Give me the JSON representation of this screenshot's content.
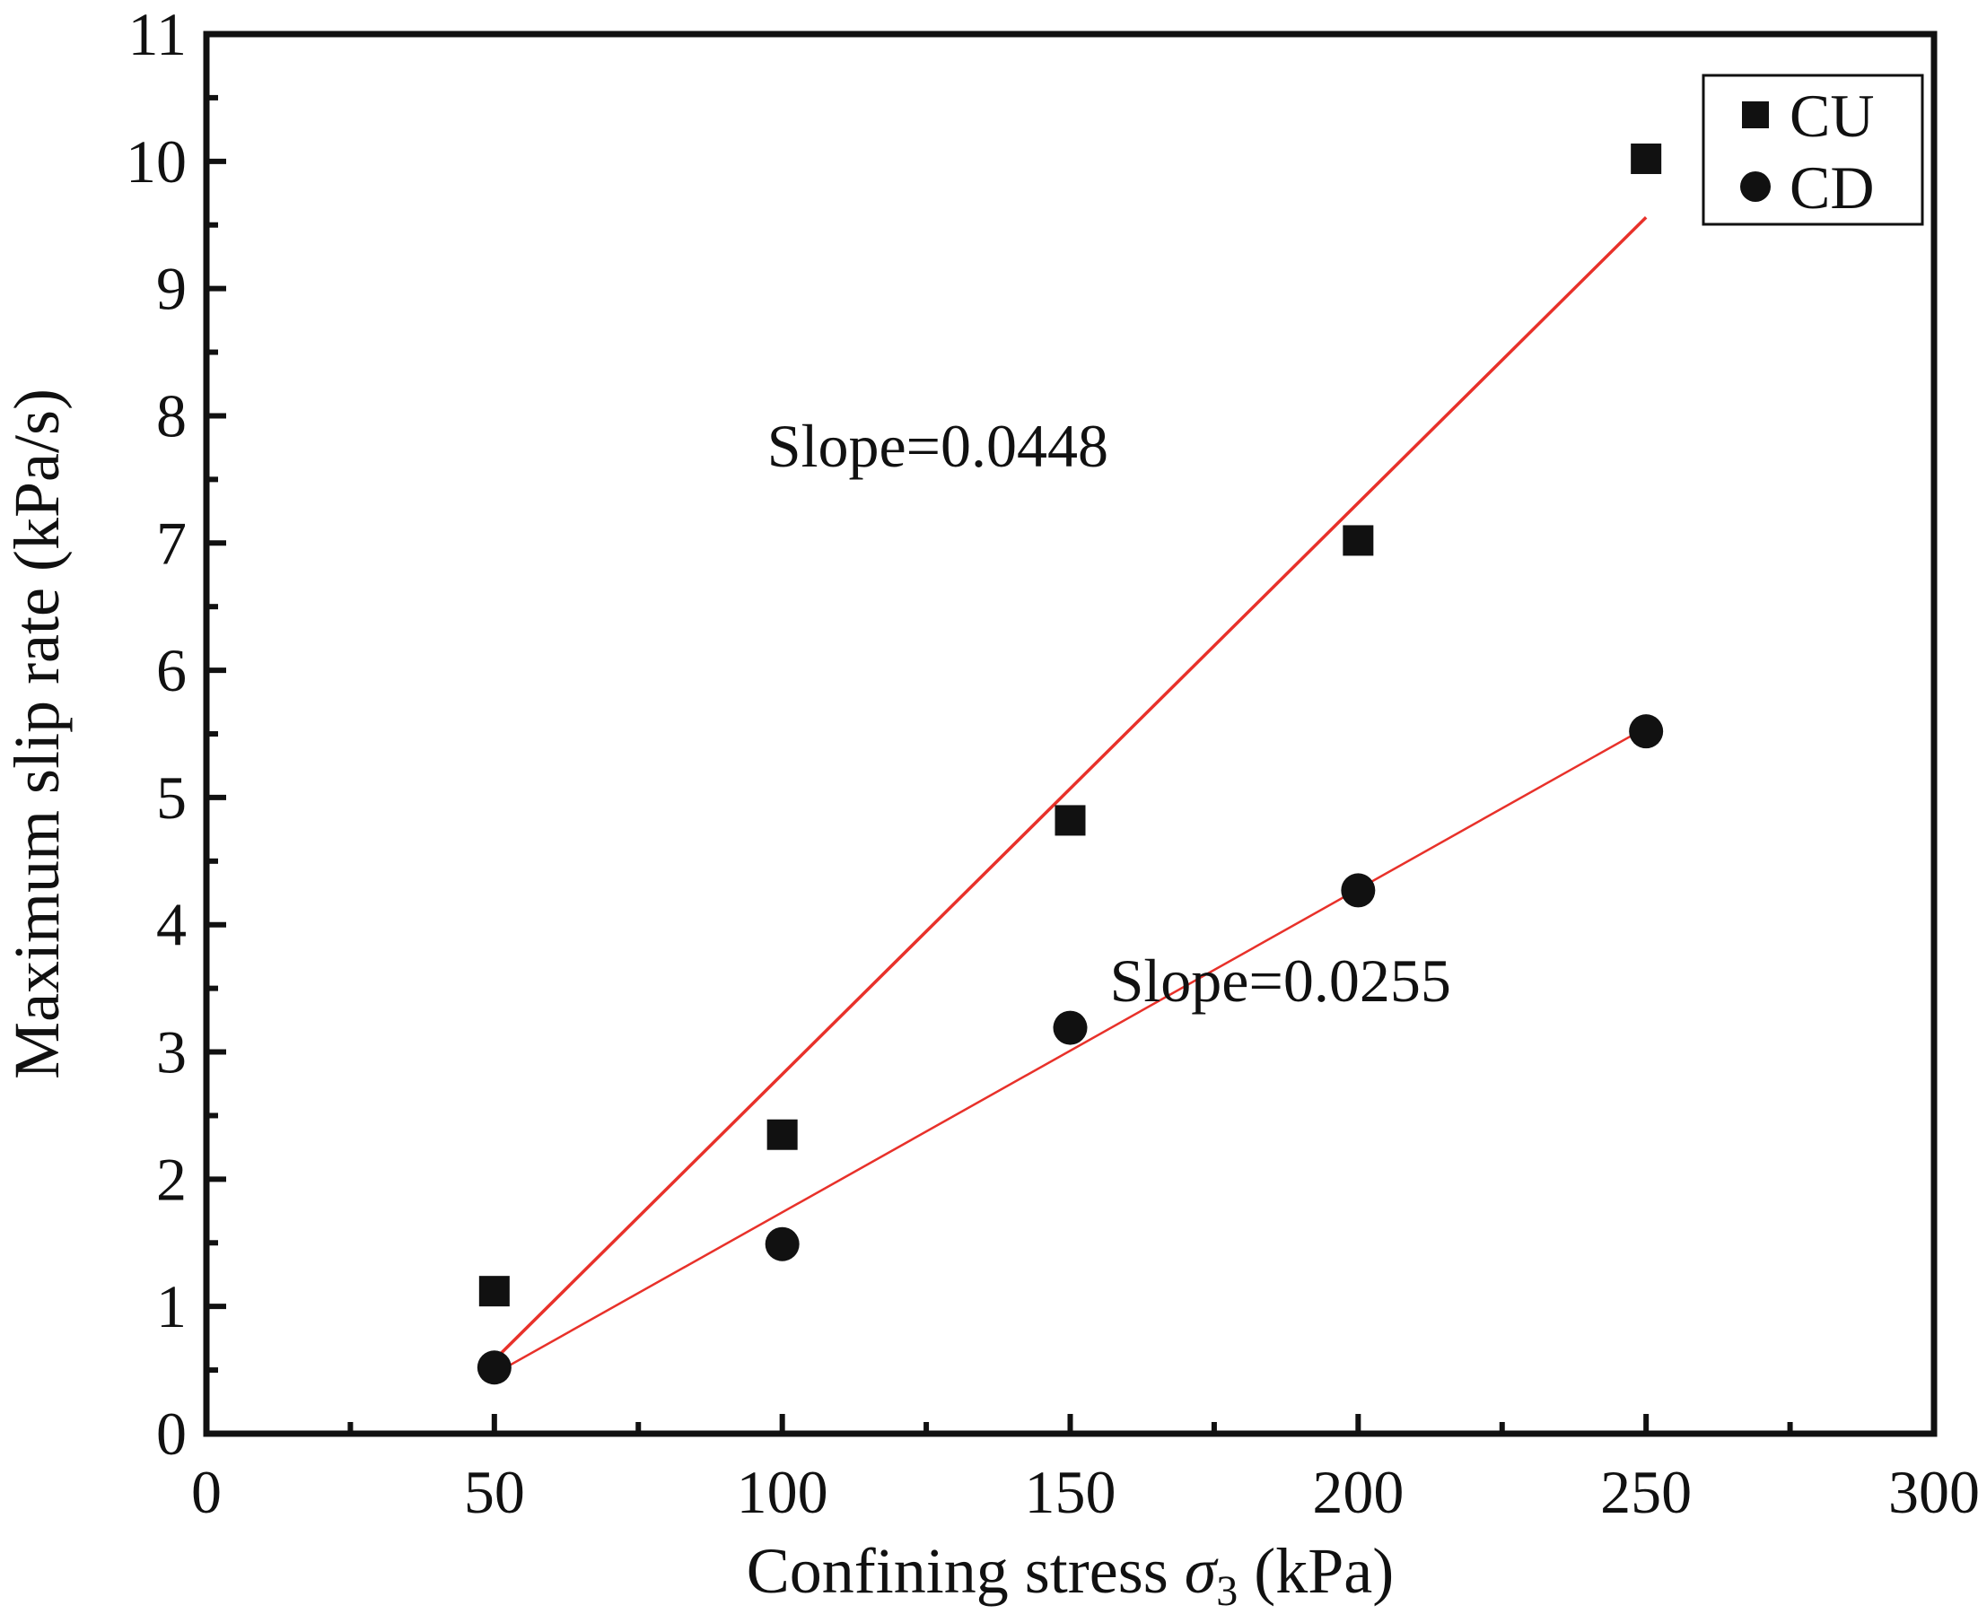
{
  "chart_data": {
    "type": "scatter",
    "title": "",
    "xlabel": {
      "prefix": "Confining stress ",
      "symbol": "σ",
      "subscript": "3",
      "suffix": " (kPa)"
    },
    "ylabel": "Maximum slip rate (kPa/s)",
    "xlim": [
      0,
      300
    ],
    "ylim": [
      0,
      11
    ],
    "xticks": [
      0,
      50,
      100,
      150,
      200,
      250,
      300
    ],
    "xtick_labels": [
      "0",
      "50",
      "100",
      "150",
      "200",
      "250",
      "300"
    ],
    "yticks": [
      0,
      1,
      2,
      3,
      4,
      5,
      6,
      7,
      8,
      9,
      10,
      11
    ],
    "ytick_labels": [
      "0",
      "1",
      "2",
      "3",
      "4",
      "5",
      "6",
      "7",
      "8",
      "9",
      "10",
      "11"
    ],
    "grid": false,
    "legend_position": "top-right",
    "series": [
      {
        "name": "CU",
        "marker": "square",
        "color": "#111111",
        "x": [
          50,
          100,
          150,
          200,
          250
        ],
        "y": [
          1.12,
          2.35,
          4.82,
          7.02,
          10.02
        ]
      },
      {
        "name": "CD",
        "marker": "circle",
        "color": "#111111",
        "x": [
          50,
          100,
          150,
          200,
          250
        ],
        "y": [
          0.52,
          1.49,
          3.19,
          4.27,
          5.52
        ]
      }
    ],
    "fit_lines": [
      {
        "series": "CU",
        "color": "#e8312a",
        "x": [
          50,
          250
        ],
        "y": [
          0.58,
          9.56
        ]
      },
      {
        "series": "CD",
        "color": "#e8312a",
        "x": [
          50,
          250
        ],
        "y": [
          0.47,
          5.55
        ]
      }
    ],
    "annotations": [
      {
        "text": "Slope=0.0448",
        "x": 127,
        "y": 7.6
      },
      {
        "text": "Slope=0.0255",
        "x": 186.5,
        "y": 3.4
      }
    ]
  }
}
